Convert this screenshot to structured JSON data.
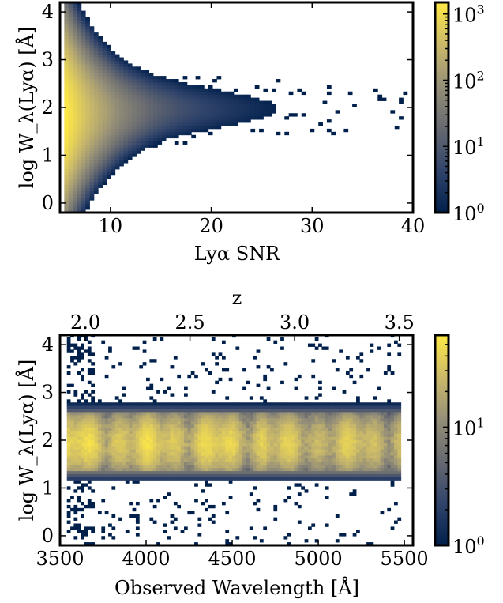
{
  "chart_data": [
    {
      "type": "heatmap",
      "xlabel": "Lyα SNR",
      "ylabel": "log W_λ(Lyα) [Å]",
      "xlim": [
        5,
        40
      ],
      "ylim": [
        -0.2,
        4.2
      ],
      "x_ticks": [
        10,
        20,
        30,
        40
      ],
      "x_tick_labels": [
        "10",
        "20",
        "30",
        "40"
      ],
      "y_ticks": [
        0,
        1,
        2,
        3,
        4
      ],
      "y_tick_labels": [
        "0",
        "1",
        "2",
        "3",
        "4"
      ],
      "colorbar": {
        "scale": "log",
        "range": [
          1,
          1500
        ],
        "ticks": [
          1,
          10,
          100,
          1000
        ],
        "tick_labels": [
          "10^0",
          "10^1",
          "10^2",
          "10^3"
        ],
        "colormap": [
          "#00204c",
          "#31446b",
          "#666970",
          "#958f78",
          "#cbba69",
          "#ffe945"
        ]
      },
      "distribution": {
        "peak_at_x": 5.5,
        "peak_y": 1.7,
        "y_spread_at_low_x": [
          0.3,
          4.1
        ],
        "y_spread_at_x20": [
          1.3,
          2.9
        ],
        "max_count": 1500
      },
      "grid": false
    },
    {
      "type": "heatmap",
      "xlabel": "Observed Wavelength [Å]",
      "ylabel": "log W_λ(Lyα) [Å]",
      "top_xlabel": "z",
      "xlim": [
        3500,
        5550
      ],
      "ylim": [
        -0.2,
        4.2
      ],
      "x_ticks": [
        3500,
        4000,
        4500,
        5000,
        5500
      ],
      "x_tick_labels": [
        "3500",
        "4000",
        "4500",
        "5000",
        "5500"
      ],
      "top_ticks": [
        2.0,
        2.5,
        3.0,
        3.5
      ],
      "top_tick_labels": [
        "2.0",
        "2.5",
        "3.0",
        "3.5"
      ],
      "y_ticks": [
        0,
        1,
        2,
        3,
        4
      ],
      "y_tick_labels": [
        "0",
        "1",
        "2",
        "3",
        "4"
      ],
      "colorbar": {
        "scale": "log",
        "range": [
          1,
          60
        ],
        "ticks": [
          1,
          10
        ],
        "tick_labels": [
          "10^0",
          "10^1"
        ],
        "colormap": [
          "#00204c",
          "#31446b",
          "#666970",
          "#958f78",
          "#cbba69",
          "#ffe945"
        ]
      },
      "distribution": {
        "wavelength_range": [
          3550,
          5470
        ],
        "core_y_range": [
          1.3,
          2.6
        ],
        "center_y": 1.95,
        "max_count": 60
      },
      "grid": false
    }
  ]
}
